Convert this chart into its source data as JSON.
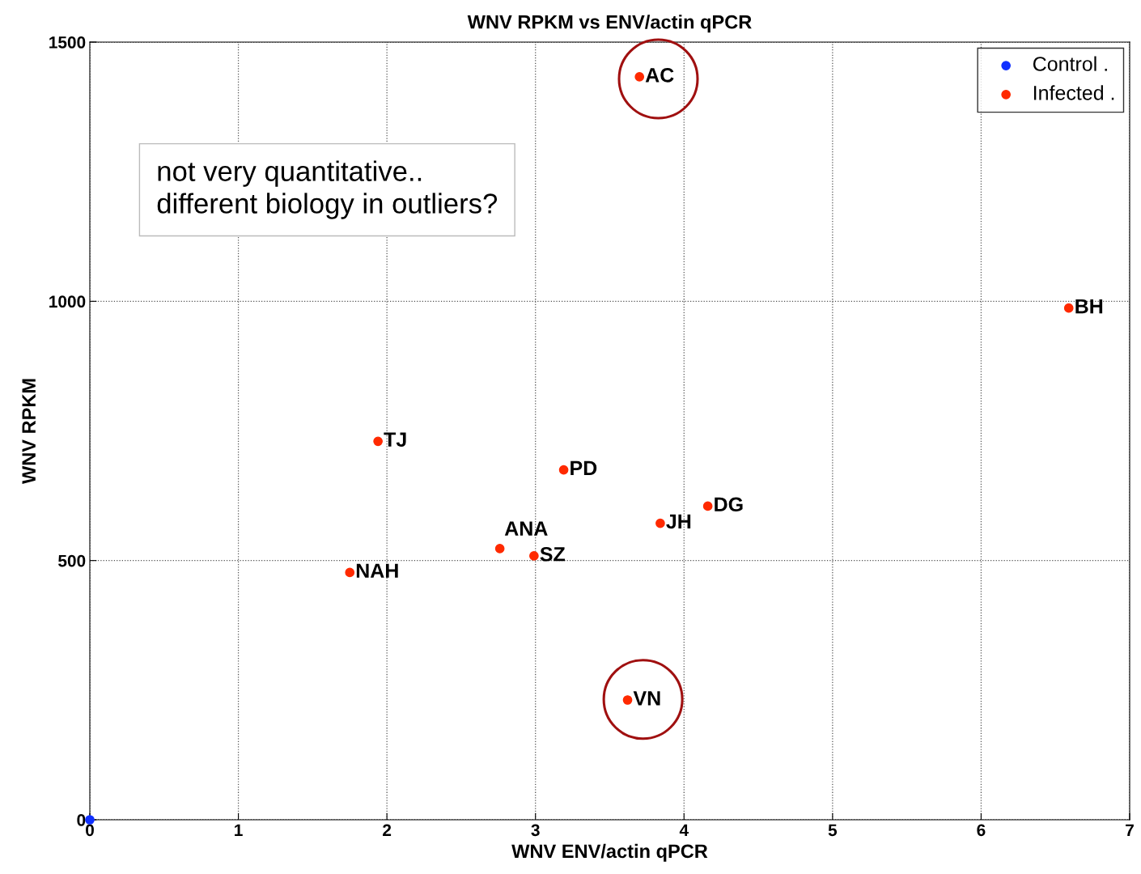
{
  "chart_data": {
    "type": "scatter",
    "title": "WNV RPKM vs ENV/actin qPCR",
    "xlabel": "WNV ENV/actin qPCR",
    "ylabel": "WNV RPKM",
    "series": [
      {
        "name": "Control .",
        "color": "#1030ff",
        "x": [
          0
        ],
        "values": [
          0
        ]
      },
      {
        "name": "Infected .",
        "color": "#ff2a00",
        "x": [
          3.7,
          6.59,
          1.94,
          3.19,
          4.16,
          3.84,
          2.76,
          2.99,
          1.75,
          3.62
        ],
        "values": [
          1433,
          987,
          730,
          675,
          605,
          572,
          523,
          509,
          477,
          231
        ]
      }
    ],
    "annotations": [
      "not very quantitative..\ndifferent biology in outliers?",
      {
        "text": "AC",
        "x": 3.7,
        "y": 1433
      },
      {
        "text": "BH",
        "x": 6.59,
        "y": 987
      },
      {
        "text": "TJ",
        "x": 1.94,
        "y": 730
      },
      {
        "text": "PD",
        "x": 3.19,
        "y": 675
      },
      {
        "text": "DG",
        "x": 4.16,
        "y": 605
      },
      {
        "text": "JH",
        "x": 3.84,
        "y": 572
      },
      {
        "text": "ANA",
        "x": 2.76,
        "y": 523
      },
      {
        "text": "SZ",
        "x": 2.99,
        "y": 509
      },
      {
        "text": "NAH",
        "x": 1.75,
        "y": 477
      },
      {
        "text": "VN",
        "x": 3.62,
        "y": 231
      }
    ],
    "xlim": [
      0,
      7
    ],
    "ylim": [
      0,
      1500
    ],
    "xticks": [
      0,
      1,
      2,
      3,
      4,
      5,
      6,
      7
    ],
    "yticks": [
      0,
      500,
      1000,
      1500
    ],
    "grid": true,
    "legend": "top right",
    "marker": "circle"
  }
}
